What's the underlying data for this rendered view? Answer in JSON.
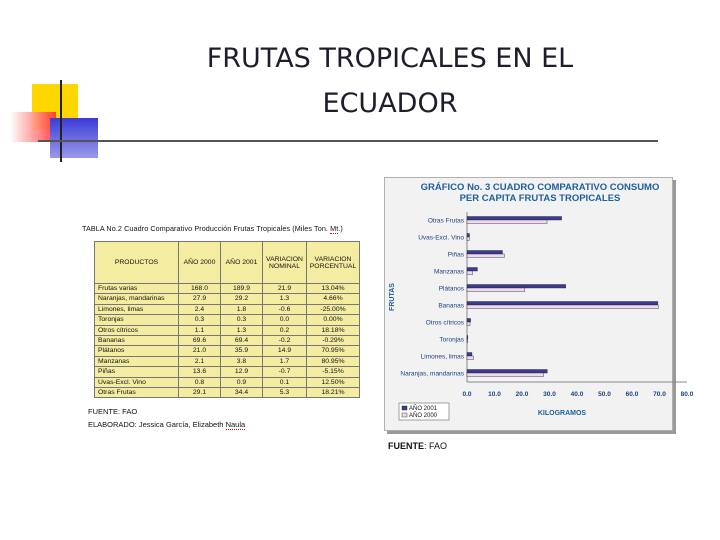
{
  "title_line1": "FRUTAS TROPICALES EN EL",
  "title_line2": "ECUADOR",
  "table": {
    "caption_pre": "TABLA No.2  Cuadro Comparativo Producción Frutas Tropicales (Miles Ton. ",
    "caption_unit": "Mt",
    "caption_post": ".)",
    "headers": [
      "PRODUCTOS",
      "AÑO 2000",
      "AÑO 2001",
      "VARIACION NOMINAL",
      "VARIACION PORCENTUAL"
    ],
    "rows": [
      [
        "Frutas varias",
        "168.0",
        "189.9",
        "21.9",
        "13.04%"
      ],
      [
        "Naranjas, mandarinas",
        "27.9",
        "29.2",
        "1.3",
        "4.66%"
      ],
      [
        "Limones, limas",
        "2.4",
        "1.8",
        "-0.6",
        "-25.00%"
      ],
      [
        "Toronjas",
        "0.3",
        "0.3",
        "0.0",
        "0.00%"
      ],
      [
        "Otros cítricos",
        "1.1",
        "1.3",
        "0.2",
        "18.18%"
      ],
      [
        "Bananas",
        "69.6",
        "69.4",
        "-0.2",
        "-0.29%"
      ],
      [
        "Plátanos",
        "21.0",
        "35.9",
        "14.9",
        "70.95%"
      ],
      [
        "Manzanas",
        "2.1",
        "3.8",
        "1.7",
        "80.95%"
      ],
      [
        "Piñas",
        "13.6",
        "12.9",
        "-0.7",
        "-5.15%"
      ],
      [
        "Uvas-Excl. Vino",
        "0.8",
        "0.9",
        "0.1",
        "12.50%"
      ],
      [
        "Otras Frutas",
        "29.1",
        "34.4",
        "5.3",
        "18.21%"
      ]
    ],
    "fuente": "FUENTE: FAO",
    "elaborado_pre": "ELABORADO: Jessica García, Elizabeth ",
    "elaborado_name": "Naula"
  },
  "chart_fuente_label": "FUENTE",
  "chart_fuente_value": ": FAO",
  "colors": {
    "year2001": "#3b3b8f",
    "year2000": "#f0d8f0",
    "chart_title": "#1d5f9e"
  },
  "chart_data": {
    "type": "bar",
    "orientation": "horizontal",
    "title": "GRÁFICO No. 3  CUADRO COMPARATIVO CONSUMO PER CAPITA FRUTAS TROPICALES",
    "xlabel": "KILOGRAMOS",
    "ylabel": "FRUTAS",
    "xlim": [
      0,
      80
    ],
    "xticks": [
      "0.0",
      "10.0",
      "20.0",
      "30.0",
      "40.0",
      "50.0",
      "60.0",
      "70.0",
      "80.0"
    ],
    "categories": [
      "Otras Frutas",
      "Uvas-Excl. Vino",
      "Piñas",
      "Manzanas",
      "Plátanos",
      "Bananas",
      "Otros cítricos",
      "Toronjas",
      "Limones, limas",
      "Naranjas, mandarinas"
    ],
    "series": [
      {
        "name": "AÑO 2001",
        "values": [
          34.4,
          0.9,
          12.9,
          3.8,
          35.9,
          69.4,
          1.3,
          0.3,
          1.8,
          29.2
        ]
      },
      {
        "name": "AÑO 2000",
        "values": [
          29.1,
          0.8,
          13.6,
          2.1,
          21.0,
          69.6,
          1.1,
          0.3,
          2.4,
          27.9
        ]
      }
    ],
    "legend": "bottom-left"
  }
}
